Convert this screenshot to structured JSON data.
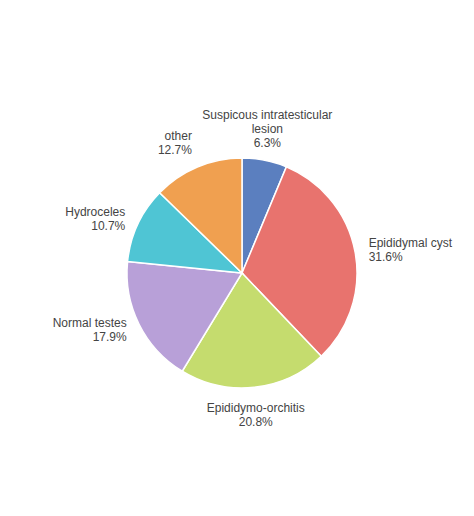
{
  "chart_data": {
    "type": "pie",
    "categories": [
      "Suspicous intratesticular\nlesion",
      "Epididymal cyst",
      "Epididymo-orchitis",
      "Normal testes",
      "Hydroceles",
      "other"
    ],
    "values": [
      6.3,
      31.6,
      20.8,
      17.9,
      10.7,
      12.7
    ],
    "value_labels": [
      "6.3%",
      "31.6%",
      "20.8%",
      "17.9%",
      "10.7%",
      "12.7%"
    ],
    "data_labels": true,
    "colors": [
      "#5b7fbf",
      "#e8736e",
      "#c5dc6e",
      "#b8a0d8",
      "#4fc5d4",
      "#f0a050"
    ]
  }
}
